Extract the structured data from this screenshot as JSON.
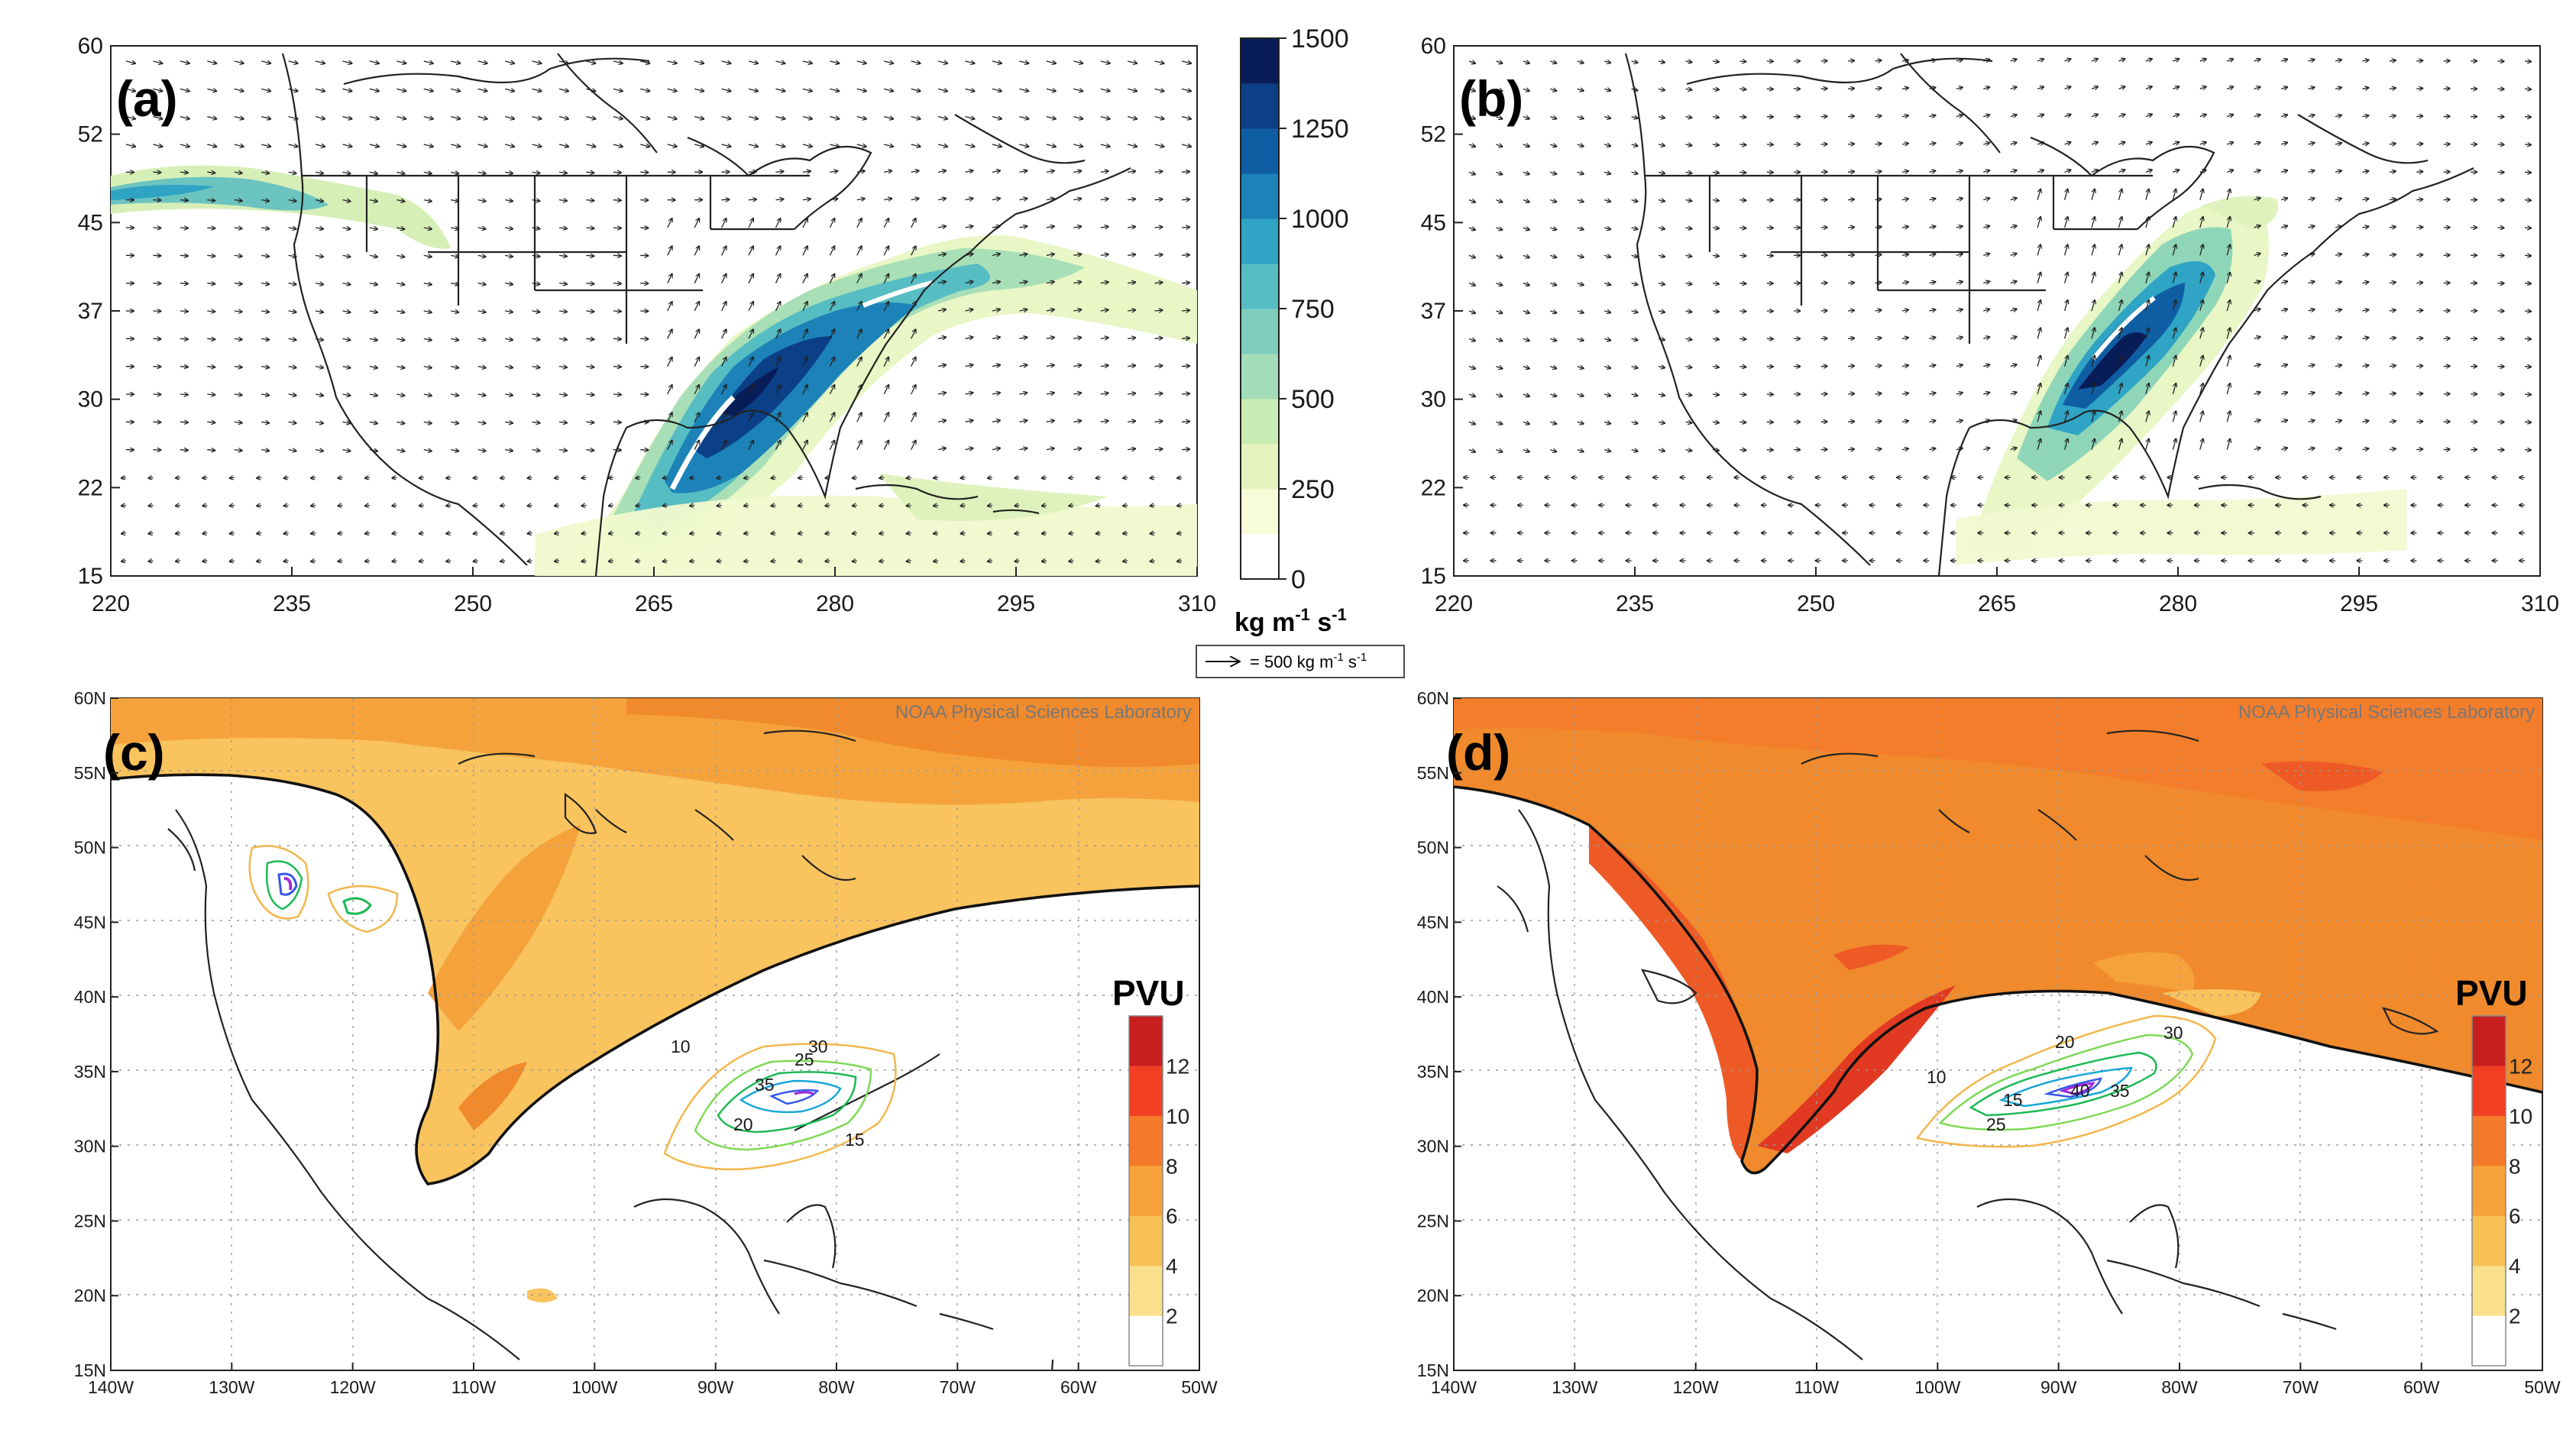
{
  "panels": {
    "a": {
      "label": "(a)"
    },
    "b": {
      "label": "(b)"
    },
    "c": {
      "label": "(c)",
      "credit": "NOAA Physical Sciences Laboratory"
    },
    "d": {
      "label": "(d)",
      "credit": "NOAA Physical Sciences Laboratory"
    }
  },
  "top_axes": {
    "y_ticks": [
      "60",
      "52",
      "45",
      "37",
      "30",
      "22",
      "15"
    ],
    "x_ticks": [
      "220",
      "235",
      "250",
      "265",
      "280",
      "295",
      "310"
    ]
  },
  "ivt_colorbar": {
    "ticks": [
      "1500",
      "1250",
      "1000",
      "750",
      "500",
      "250",
      "0"
    ],
    "unit_main": "kg m",
    "unit_exp1": "-1",
    "unit_mid": " s",
    "unit_exp2": "-1",
    "vector_ref": "= 500 kg m",
    "vector_ref_exp1": "-1",
    "vector_ref_mid": " s",
    "vector_ref_exp2": "-1",
    "colors": [
      "#ffffff",
      "#f7fbd7",
      "#e5f4bf",
      "#c9ebb4",
      "#a3dcb8",
      "#7ecdbd",
      "#56bdc3",
      "#2fa4c4",
      "#1c82b8",
      "#0f5ea3",
      "#0b3f86",
      "#081d58"
    ]
  },
  "bottom_axes": {
    "y_ticks": [
      "60N",
      "55N",
      "50N",
      "45N",
      "40N",
      "35N",
      "30N",
      "25N",
      "20N",
      "15N"
    ],
    "x_ticks": [
      "140W",
      "130W",
      "120W",
      "110W",
      "100W",
      "90W",
      "80W",
      "70W",
      "60W",
      "50W"
    ]
  },
  "pv_colorbar": {
    "title": "PVU",
    "ticks": [
      "12",
      "10",
      "8",
      "6",
      "4",
      "2"
    ],
    "colors": [
      "#c81e1e",
      "#f23f23",
      "#f47a2a",
      "#f6a13a",
      "#f7c055",
      "#fae08a",
      "#ffffff"
    ]
  },
  "contour_labels_c": [
    "10",
    "15",
    "20",
    "25",
    "30",
    "35"
  ],
  "contour_labels_d": [
    "10",
    "15",
    "20",
    "25",
    "30",
    "35",
    "40"
  ]
}
